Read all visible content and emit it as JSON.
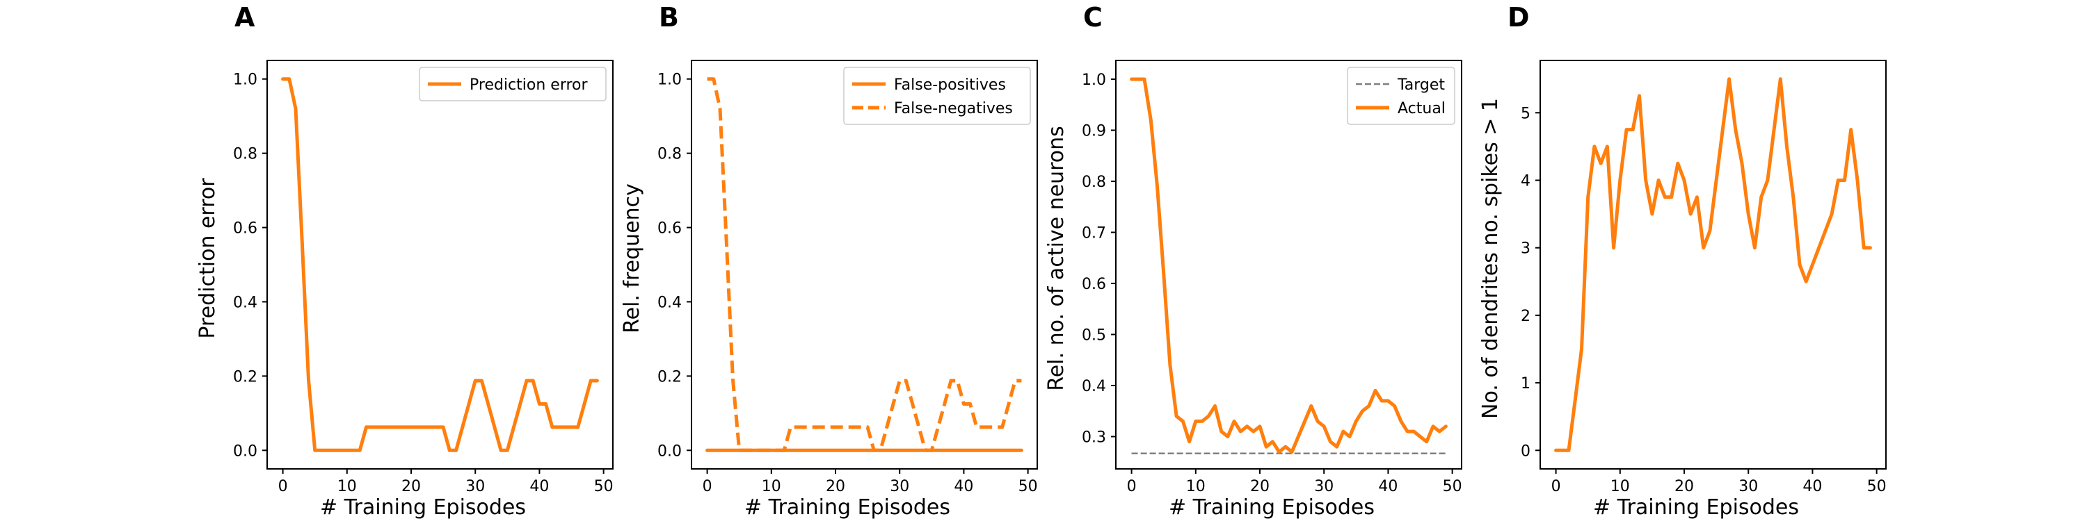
{
  "colors": {
    "series": "#ff7f0e",
    "target": "#7f7f7f",
    "axis": "#000000",
    "legend_border": "#cccccc"
  },
  "chart_data": [
    {
      "panel": "A",
      "type": "line",
      "xlabel": "# Training Episodes",
      "ylabel": "Prediction error",
      "xlim": [
        -2.45,
        51.45
      ],
      "ylim": [
        -0.05,
        1.05
      ],
      "xticks": [
        "0",
        "10",
        "20",
        "30",
        "40",
        "50"
      ],
      "yticks": [
        "0.0",
        "0.2",
        "0.4",
        "0.6",
        "0.8",
        "1.0"
      ],
      "legend_position": "top-right",
      "series": [
        {
          "name": "Prediction error",
          "style": "solid",
          "x": [
            0,
            1,
            2,
            3,
            4,
            5,
            6,
            7,
            8,
            9,
            10,
            11,
            12,
            13,
            14,
            15,
            16,
            17,
            18,
            19,
            20,
            21,
            22,
            23,
            24,
            25,
            26,
            27,
            28,
            29,
            30,
            31,
            32,
            33,
            34,
            35,
            36,
            37,
            38,
            39,
            40,
            41,
            42,
            43,
            44,
            45,
            46,
            47,
            48,
            49
          ],
          "y": [
            1.0,
            1.0,
            0.92,
            0.56,
            0.19,
            0.0,
            0.0,
            0.0,
            0.0,
            0.0,
            0.0,
            0.0,
            0.0,
            0.0625,
            0.0625,
            0.0625,
            0.0625,
            0.0625,
            0.0625,
            0.0625,
            0.0625,
            0.0625,
            0.0625,
            0.0625,
            0.0625,
            0.0625,
            0.0,
            0.0,
            0.0625,
            0.125,
            0.1875,
            0.1875,
            0.125,
            0.0625,
            0.0,
            0.0,
            0.0625,
            0.125,
            0.1875,
            0.1875,
            0.125,
            0.125,
            0.0625,
            0.0625,
            0.0625,
            0.0625,
            0.0625,
            0.125,
            0.1875,
            0.1875
          ]
        }
      ]
    },
    {
      "panel": "B",
      "type": "line",
      "xlabel": "# Training Episodes",
      "ylabel": "Rel. frequency",
      "xlim": [
        -2.45,
        51.45
      ],
      "ylim": [
        -0.05,
        1.05
      ],
      "xticks": [
        "0",
        "10",
        "20",
        "30",
        "40",
        "50"
      ],
      "yticks": [
        "0.0",
        "0.2",
        "0.4",
        "0.6",
        "0.8",
        "1.0"
      ],
      "legend_position": "top-right",
      "series": [
        {
          "name": "False-positives",
          "style": "solid",
          "x": [
            0,
            49
          ],
          "y": [
            0.0,
            0.0
          ]
        },
        {
          "name": "False-negatives",
          "style": "dashed",
          "x": [
            0,
            1,
            2,
            3,
            4,
            5,
            6,
            7,
            8,
            9,
            10,
            11,
            12,
            13,
            14,
            15,
            16,
            17,
            18,
            19,
            20,
            21,
            22,
            23,
            24,
            25,
            26,
            27,
            28,
            29,
            30,
            31,
            32,
            33,
            34,
            35,
            36,
            37,
            38,
            39,
            40,
            41,
            42,
            43,
            44,
            45,
            46,
            47,
            48,
            49
          ],
          "y": [
            1.0,
            1.0,
            0.92,
            0.56,
            0.19,
            0.0,
            0.0,
            0.0,
            0.0,
            0.0,
            0.0,
            0.0,
            0.0,
            0.0625,
            0.0625,
            0.0625,
            0.0625,
            0.0625,
            0.0625,
            0.0625,
            0.0625,
            0.0625,
            0.0625,
            0.0625,
            0.0625,
            0.0625,
            0.0,
            0.0,
            0.0625,
            0.125,
            0.1875,
            0.1875,
            0.125,
            0.0625,
            0.0,
            0.0,
            0.0625,
            0.125,
            0.1875,
            0.1875,
            0.125,
            0.125,
            0.0625,
            0.0625,
            0.0625,
            0.0625,
            0.0625,
            0.125,
            0.1875,
            0.1875
          ]
        }
      ]
    },
    {
      "panel": "C",
      "type": "line",
      "xlabel": "# Training Episodes",
      "ylabel": "Rel. no. of active neurons",
      "xlim": [
        -2.45,
        51.45
      ],
      "ylim": [
        0.2367,
        1.0367
      ],
      "xticks": [
        "0",
        "10",
        "20",
        "30",
        "40",
        "50"
      ],
      "yticks": [
        "0.3",
        "0.4",
        "0.5",
        "0.6",
        "0.7",
        "0.8",
        "0.9",
        "1.0"
      ],
      "legend_position": "top-right",
      "series": [
        {
          "name": "Target",
          "style": "dashed",
          "x": [
            0,
            49
          ],
          "y": [
            0.267,
            0.267
          ]
        },
        {
          "name": "Actual",
          "style": "solid",
          "x": [
            0,
            1,
            2,
            3,
            4,
            5,
            6,
            7,
            8,
            9,
            10,
            11,
            12,
            13,
            14,
            15,
            16,
            17,
            18,
            19,
            20,
            21,
            22,
            23,
            24,
            25,
            26,
            27,
            28,
            29,
            30,
            31,
            32,
            33,
            34,
            35,
            36,
            37,
            38,
            39,
            40,
            41,
            42,
            43,
            44,
            45,
            46,
            47,
            48,
            49
          ],
          "y": [
            1.0,
            1.0,
            1.0,
            0.92,
            0.79,
            0.62,
            0.44,
            0.34,
            0.33,
            0.29,
            0.33,
            0.33,
            0.34,
            0.36,
            0.31,
            0.3,
            0.33,
            0.31,
            0.32,
            0.31,
            0.32,
            0.28,
            0.29,
            0.27,
            0.28,
            0.27,
            0.3,
            0.33,
            0.36,
            0.33,
            0.32,
            0.29,
            0.28,
            0.31,
            0.3,
            0.33,
            0.35,
            0.36,
            0.39,
            0.37,
            0.37,
            0.36,
            0.33,
            0.31,
            0.31,
            0.3,
            0.29,
            0.32,
            0.31,
            0.32
          ]
        }
      ]
    },
    {
      "panel": "D",
      "type": "line",
      "xlabel": "# Training Episodes",
      "ylabel": "No. of dendrites no. spikes > 1",
      "xlim": [
        -2.45,
        51.45
      ],
      "ylim": [
        -0.275,
        5.775
      ],
      "xticks": [
        "0",
        "10",
        "20",
        "30",
        "40",
        "50"
      ],
      "yticks": [
        "0",
        "1",
        "2",
        "3",
        "4",
        "5"
      ],
      "series": [
        {
          "style": "solid",
          "x": [
            0,
            1,
            2,
            3,
            4,
            5,
            6,
            7,
            8,
            9,
            10,
            11,
            12,
            13,
            14,
            15,
            16,
            17,
            18,
            19,
            20,
            21,
            22,
            23,
            24,
            25,
            26,
            27,
            28,
            29,
            30,
            31,
            32,
            33,
            34,
            35,
            36,
            37,
            38,
            39,
            40,
            41,
            42,
            43,
            44,
            45,
            46,
            47,
            48,
            49
          ],
          "y": [
            0.0,
            0.0,
            0.0,
            0.75,
            1.5,
            3.75,
            4.5,
            4.25,
            4.5,
            3.0,
            4.0,
            4.75,
            4.75,
            5.25,
            4.0,
            3.5,
            4.0,
            3.75,
            3.75,
            4.25,
            4.0,
            3.5,
            3.75,
            3.0,
            3.25,
            4.0,
            4.75,
            5.5,
            4.75,
            4.25,
            3.5,
            3.0,
            3.75,
            4.0,
            4.75,
            5.5,
            4.5,
            3.75,
            2.75,
            2.5,
            2.75,
            3.0,
            3.25,
            3.5,
            4.0,
            4.0,
            4.75,
            4.0,
            3.0,
            3.0
          ]
        }
      ]
    }
  ]
}
